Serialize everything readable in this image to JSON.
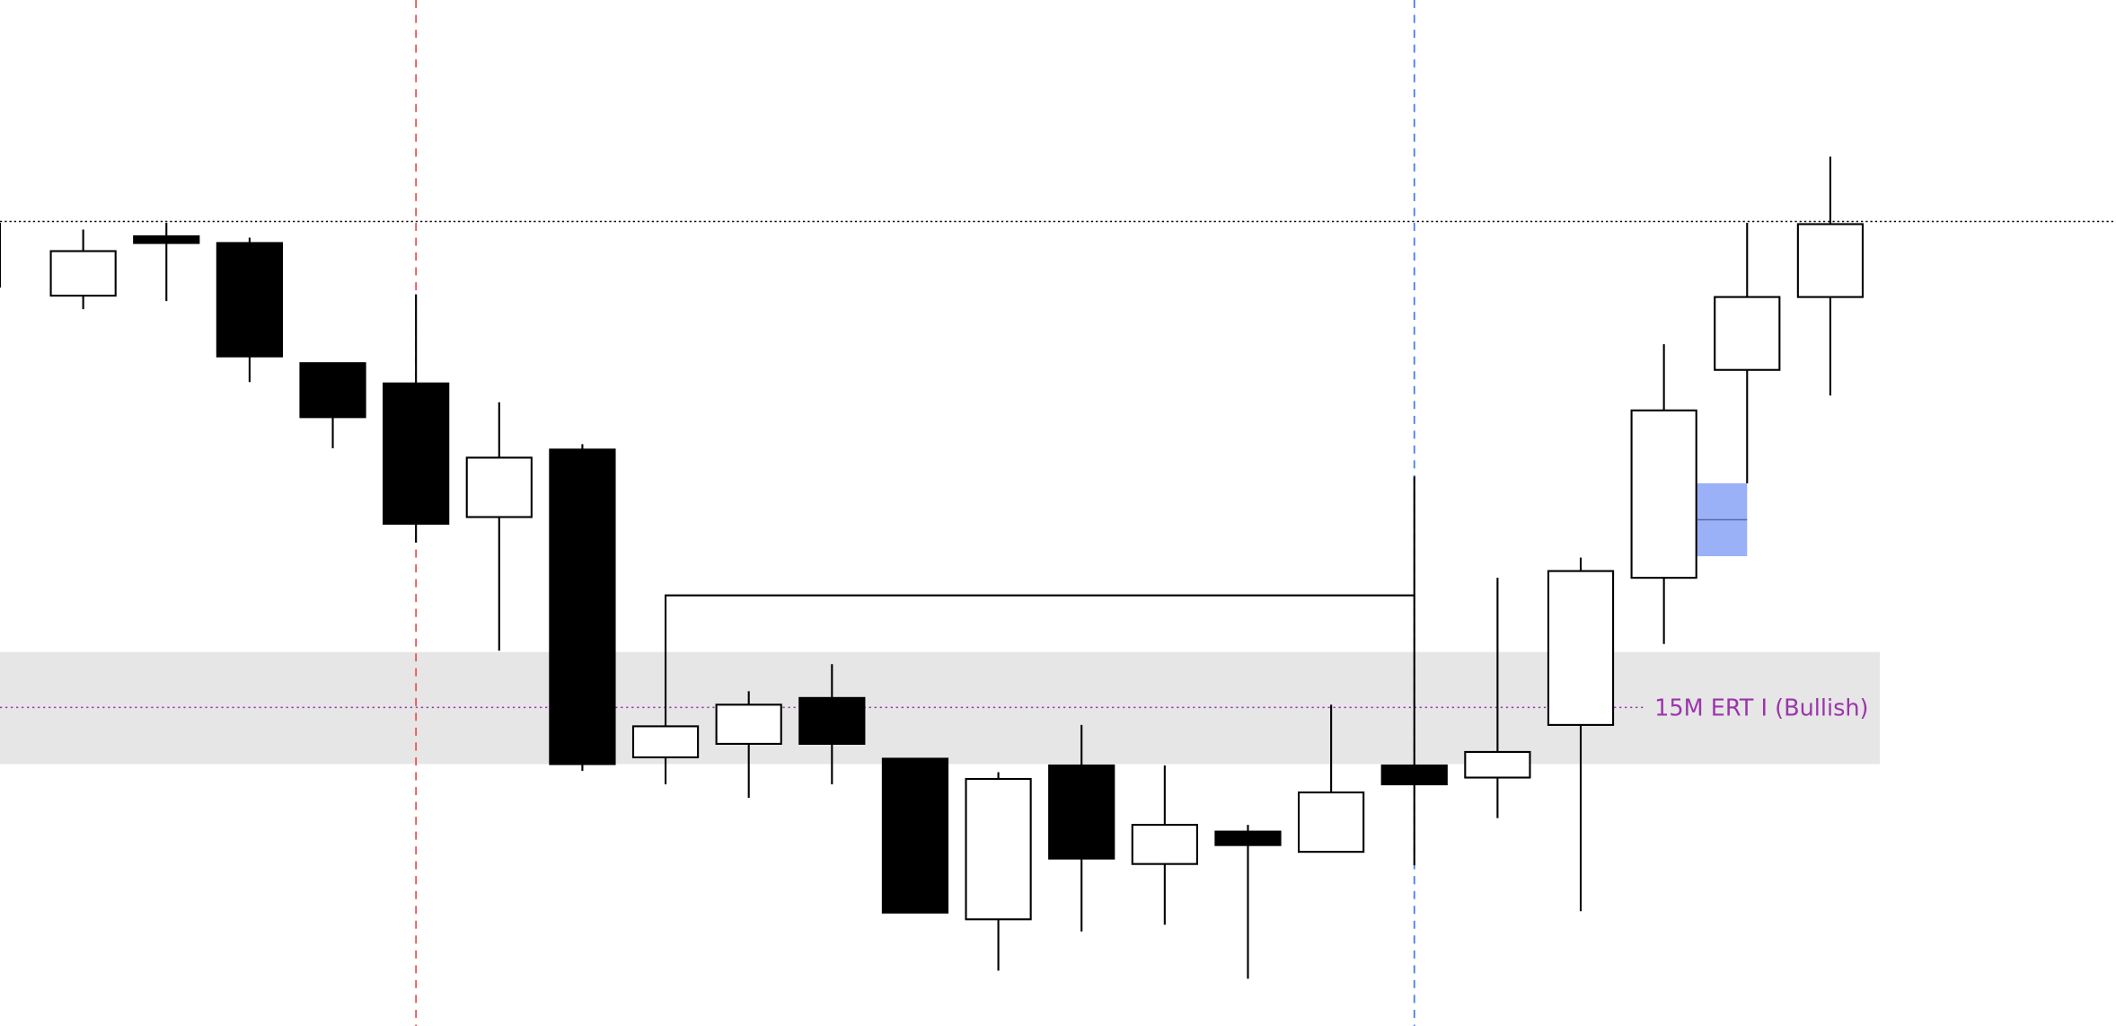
{
  "chart_data": {
    "type": "candlestick",
    "title": "",
    "xlabel": "",
    "ylabel": "",
    "ylim": [
      0,
      76
    ],
    "grid": false,
    "colors": {
      "bullish_body": "#ffffff",
      "bearish_body": "#000000",
      "outline": "#000000",
      "zone_fill": "#e6e6e6",
      "zone_label": "#9b35ab",
      "red_marker": "#f0504f",
      "blue_marker": "#4a7cf0",
      "highlight_box": "#9ab0f7"
    },
    "candles": [
      {
        "o": 54.7,
        "h": 59.5,
        "l": 54.7,
        "c": 59.5
      },
      {
        "o": 54.1,
        "h": 59.0,
        "l": 53.1,
        "c": 57.4
      },
      {
        "o": 58.5,
        "h": 59.5,
        "l": 53.7,
        "c": 58.0
      },
      {
        "o": 58.0,
        "h": 58.4,
        "l": 47.7,
        "c": 49.6
      },
      {
        "o": 49.1,
        "h": 49.1,
        "l": 42.8,
        "c": 45.1
      },
      {
        "o": 47.6,
        "h": 54.2,
        "l": 35.8,
        "c": 37.2
      },
      {
        "o": 37.7,
        "h": 46.2,
        "l": 27.8,
        "c": 42.1
      },
      {
        "o": 42.7,
        "h": 43.1,
        "l": 18.9,
        "c": 19.4
      },
      {
        "o": 19.9,
        "h": 22.2,
        "l": 17.9,
        "c": 22.2
      },
      {
        "o": 20.9,
        "h": 24.8,
        "l": 16.9,
        "c": 23.8
      },
      {
        "o": 24.3,
        "h": 26.8,
        "l": 17.9,
        "c": 20.9
      },
      {
        "o": 19.8,
        "h": 19.8,
        "l": 8.4,
        "c": 8.4
      },
      {
        "o": 7.9,
        "h": 18.8,
        "l": 4.1,
        "c": 18.3
      },
      {
        "o": 19.3,
        "h": 22.3,
        "l": 7.0,
        "c": 12.4
      },
      {
        "o": 12.0,
        "h": 19.3,
        "l": 7.5,
        "c": 14.9
      },
      {
        "o": 14.4,
        "h": 14.9,
        "l": 3.5,
        "c": 13.4
      },
      {
        "o": 12.9,
        "h": 23.8,
        "l": 12.9,
        "c": 17.3
      },
      {
        "o": 19.3,
        "h": 40.7,
        "l": 11.9,
        "c": 17.9
      },
      {
        "o": 18.4,
        "h": 33.2,
        "l": 15.4,
        "c": 20.3
      },
      {
        "o": 22.3,
        "h": 34.7,
        "l": 8.5,
        "c": 33.7
      },
      {
        "o": 33.2,
        "h": 50.5,
        "l": 28.3,
        "c": 45.6
      },
      {
        "o": 48.6,
        "h": 59.5,
        "l": 40.2,
        "c": 54.0
      },
      {
        "o": 54.0,
        "h": 64.4,
        "l": 46.7,
        "c": 59.4
      }
    ],
    "horizontal_levels": [
      {
        "kind": "dotted",
        "price": 59.6,
        "color": "#000000"
      }
    ],
    "zone": {
      "top": 27.7,
      "bottom": 19.4,
      "mid": 23.6,
      "label": "15M ERT I (Bullish)"
    },
    "vertical_markers": [
      {
        "candle_index": 5,
        "color": "#f0504f"
      },
      {
        "candle_index": 17,
        "color": "#4a7cf0"
      }
    ],
    "bracket": {
      "from_candle": 8,
      "to_candle": 17,
      "price": 31.9,
      "bottom": 22.2
    },
    "highlight_box": {
      "candle_index": 21,
      "top": 40.2,
      "bottom": 34.8,
      "mid": 37.5
    }
  }
}
